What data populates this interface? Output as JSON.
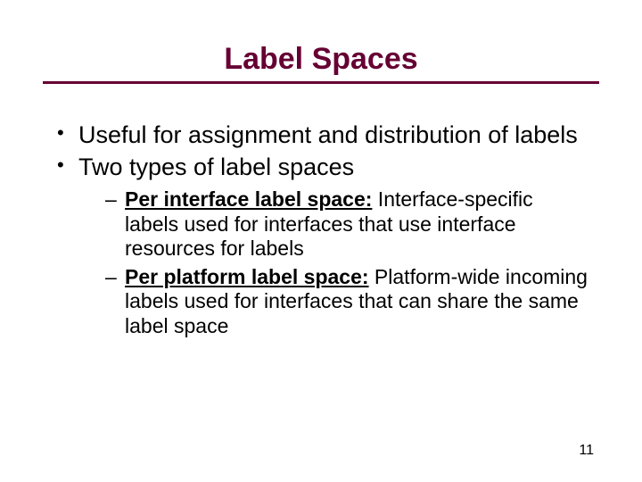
{
  "colors": {
    "title": "#660033",
    "rule": "#660033",
    "text": "#000000",
    "background": "#ffffff"
  },
  "typography": {
    "title_fontsize": 34,
    "l1_fontsize": 27,
    "l2_fontsize": 23,
    "pagenum_fontsize": 16,
    "font_family": "Comic Sans MS"
  },
  "title": "Label Spaces",
  "bullets": {
    "b1": "Useful for assignment and distribution of labels",
    "b2": "Two types of label spaces",
    "sub1_term": "Per interface label space:",
    "sub1_rest": " Interface-specific labels used for interfaces that use interface resources for labels",
    "sub2_term": "Per platform label space:",
    "sub2_rest": " Platform-wide incoming labels used for interfaces that can share the same label space"
  },
  "page_number": "11"
}
